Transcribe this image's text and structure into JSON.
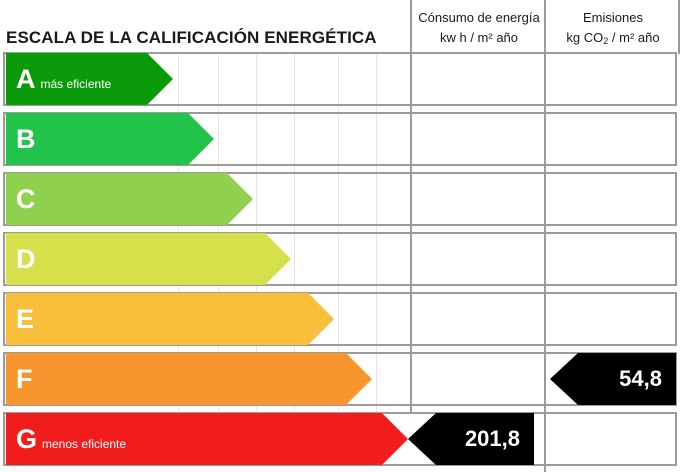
{
  "header": {
    "title": "ESCALA DE LA CALIFICACIÓN ENERGÉTICA",
    "consumo_line1": "Cónsumo de energía",
    "consumo_line2": "kw h / m² año",
    "emisiones_line1": "Emisiones",
    "emisiones_line2_pre": "kg CO",
    "emisiones_line2_sub": "2",
    "emisiones_line2_post": " / m² año"
  },
  "ratings": [
    {
      "letter": "A",
      "sublabel": "más eficiente",
      "color": "#0a9a0a"
    },
    {
      "letter": "B",
      "sublabel": "",
      "color": "#22c24b"
    },
    {
      "letter": "C",
      "sublabel": "",
      "color": "#8fd14f"
    },
    {
      "letter": "D",
      "sublabel": "",
      "color": "#d6e04a"
    },
    {
      "letter": "E",
      "sublabel": "",
      "color": "#f9bf3b"
    },
    {
      "letter": "F",
      "sublabel": "",
      "color": "#f7962f"
    },
    {
      "letter": "G",
      "sublabel": "menos eficiente",
      "color": "#f11d1d"
    }
  ],
  "consumo": {
    "rating": "G",
    "value": "201,8"
  },
  "emisiones": {
    "rating": "F",
    "value": "54,8"
  }
}
